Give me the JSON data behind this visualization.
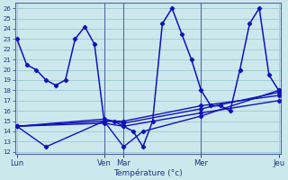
{
  "xlabel": "Température (°c)",
  "x_tick_labels": [
    "Lun",
    "Ven",
    "Mar",
    "Mer",
    "Jeu"
  ],
  "x_tick_positions": [
    0,
    9,
    11,
    19,
    27
  ],
  "yticks": [
    12,
    13,
    14,
    15,
    16,
    17,
    18,
    19,
    20,
    21,
    22,
    23,
    24,
    25,
    26
  ],
  "bg_color": "#cce8ec",
  "grid_color": "#99ccd4",
  "line_color": "#1111bb",
  "vline_color": "#5566aa",
  "vline_positions": [
    9,
    11,
    19
  ],
  "line1_x": [
    0,
    1,
    2,
    3,
    4,
    5,
    6,
    7,
    8,
    9,
    10,
    11,
    12,
    13,
    14,
    15,
    16,
    17,
    18,
    19,
    20,
    21,
    22,
    23,
    24,
    25,
    26,
    27
  ],
  "line1_y": [
    23,
    20.5,
    20,
    19,
    18.5,
    19,
    23,
    24.2,
    22.5,
    15,
    15,
    14.5,
    14,
    12.5,
    15,
    24.5,
    26,
    23.5,
    21,
    18,
    16.5,
    16.5,
    16,
    20,
    24.5,
    26,
    19.5,
    18
  ],
  "line2_x": [
    0,
    9,
    11,
    19,
    27
  ],
  "line2_y": [
    14.5,
    15.0,
    15.0,
    16.5,
    17.5
  ],
  "line3_x": [
    0,
    9,
    11,
    19,
    27
  ],
  "line3_y": [
    14.5,
    14.8,
    14.5,
    15.8,
    17.0
  ],
  "line4_x": [
    0,
    9,
    11,
    19,
    27
  ],
  "line4_y": [
    14.5,
    15.2,
    14.8,
    16.2,
    17.8
  ],
  "line5_x": [
    0,
    3,
    9,
    11,
    13,
    19,
    27
  ],
  "line5_y": [
    14.5,
    12.5,
    15.0,
    12.5,
    14.0,
    15.5,
    18.0
  ],
  "xlim_min": -0.2,
  "xlim_max": 27.2,
  "ylim_min": 11.8,
  "ylim_max": 26.5
}
